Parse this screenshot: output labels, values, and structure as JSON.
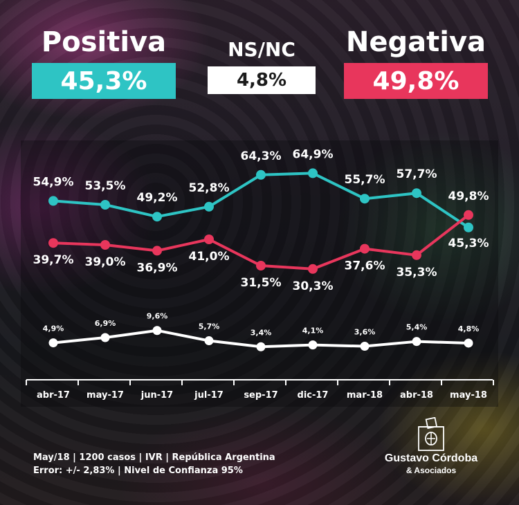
{
  "header": {
    "positiva": {
      "label": "Positiva",
      "value": "45,3%"
    },
    "nsnc": {
      "label": "NS/NC",
      "value": "4,8%"
    },
    "negativa": {
      "label": "Negativa",
      "value": "49,8%"
    }
  },
  "colors": {
    "positiva": "#2ec4c4",
    "negativa": "#e8365c",
    "nsnc": "#ffffff",
    "text": "#ffffff"
  },
  "chart_data": {
    "type": "line",
    "categories": [
      "abr-17",
      "may-17",
      "jun-17",
      "jul-17",
      "sep-17",
      "dic-17",
      "mar-18",
      "abr-18",
      "may-18"
    ],
    "series": [
      {
        "key": "positiva",
        "color": "#2ec4c4",
        "values": [
          54.9,
          53.5,
          49.2,
          52.8,
          64.3,
          64.9,
          55.7,
          57.7,
          45.3
        ],
        "labels": [
          "54,9%",
          "53,5%",
          "49,2%",
          "52,8%",
          "64,3%",
          "64,9%",
          "55,7%",
          "57,7%",
          "45,3%"
        ]
      },
      {
        "key": "negativa",
        "color": "#e8365c",
        "values": [
          39.7,
          39.0,
          36.9,
          41.0,
          31.5,
          30.3,
          37.6,
          35.3,
          49.8
        ],
        "labels": [
          "39,7%",
          "39,0%",
          "36,9%",
          "41,0%",
          "31,5%",
          "30,3%",
          "37,6%",
          "35,3%",
          "49,8%"
        ]
      },
      {
        "key": "nsnc",
        "color": "#ffffff",
        "values": [
          4.9,
          6.9,
          9.6,
          5.7,
          3.4,
          4.1,
          3.6,
          5.4,
          4.8
        ],
        "labels": [
          "4,9%",
          "6,9%",
          "9,6%",
          "5,7%",
          "3,4%",
          "4,1%",
          "3,6%",
          "5,4%",
          "4,8%"
        ]
      }
    ],
    "grid": false,
    "legend": "top"
  },
  "footer": {
    "line1": "May/18 | 1200 casos | IVR | República Argentina",
    "line2": "Error: +/- 2,83% | Nivel de Confianza 95%"
  },
  "logo": {
    "name": "Gustavo Córdoba",
    "sub": "& Asociados",
    "icon": "ballot-box-icon"
  }
}
